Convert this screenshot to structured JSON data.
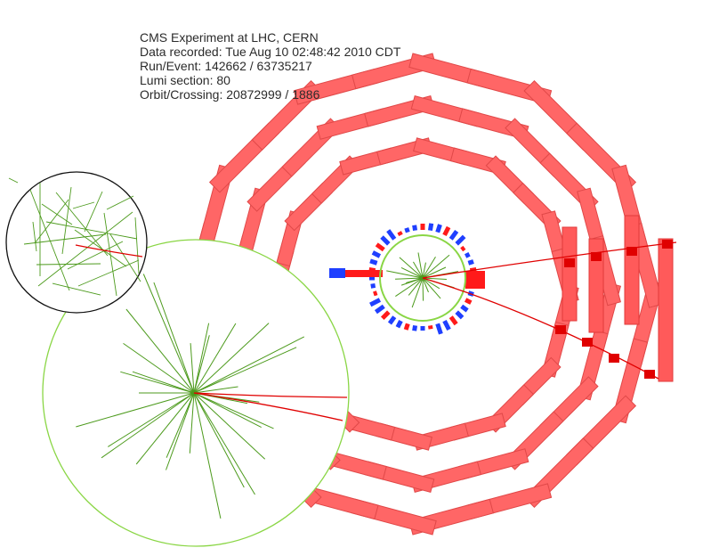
{
  "event_info": {
    "experiment": "CMS Experiment at LHC, CERN",
    "recorded": "Data recorded: Tue Aug 10 02:48:42 2010 CDT",
    "run_event": "Run/Event: 142662 / 63735217",
    "lumi": "Lumi section: 80",
    "orbit": "Orbit/Crossing: 20872999 / 1886"
  },
  "colors": {
    "muon_chamber": "#ff6666",
    "muon_chamber_border": "#e04848",
    "muon_track": "#e00000",
    "tracker_track": "#4c9a1c",
    "tracker_circle": "#8ad645",
    "inset_border": "#111111",
    "hcal": "#1f3fff",
    "ecal": "#ff1a1a"
  }
}
